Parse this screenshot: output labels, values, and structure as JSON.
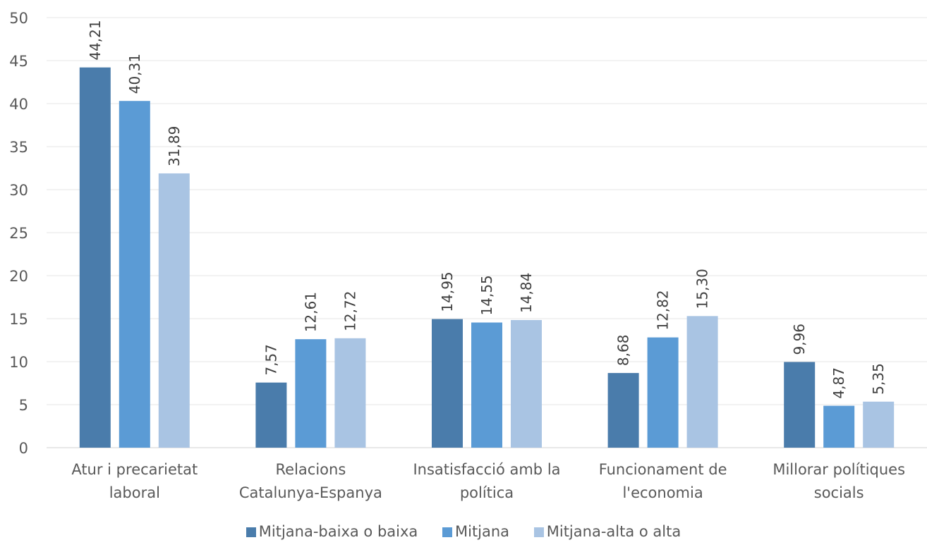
{
  "chart_data": {
    "type": "bar",
    "title": "",
    "xlabel": "",
    "ylabel": "",
    "ylim": [
      0,
      50
    ],
    "yticks": [
      0,
      5,
      10,
      15,
      20,
      25,
      30,
      35,
      40,
      45,
      50
    ],
    "grid": true,
    "legend_position": "bottom",
    "categories": [
      "Atur i precarietat laboral",
      "Relacions Catalunya-Espanya",
      "Insatisfacció amb la política",
      "Funcionament de l'economia",
      "Millorar polítiques socials"
    ],
    "category_lines": [
      [
        "Atur i precarietat",
        "laboral"
      ],
      [
        "Relacions",
        "Catalunya-Espanya"
      ],
      [
        "Insatisfacció amb la",
        "política"
      ],
      [
        "Funcionament de",
        "l'economia"
      ],
      [
        "Millorar polítiques",
        "socials"
      ]
    ],
    "series": [
      {
        "name": "Mitjana-baixa o baixa",
        "color": "#4a7cab",
        "values": [
          44.21,
          7.57,
          14.95,
          8.68,
          9.96
        ],
        "labels": [
          "44,21",
          "7,57",
          "14,95",
          "8,68",
          "9,96"
        ]
      },
      {
        "name": "Mitjana",
        "color": "#5b9bd5",
        "values": [
          40.31,
          12.61,
          14.55,
          12.82,
          4.87
        ],
        "labels": [
          "40,31",
          "12,61",
          "14,55",
          "12,82",
          "4,87"
        ]
      },
      {
        "name": "Mitjana-alta o alta",
        "color": "#a9c4e3",
        "values": [
          31.89,
          12.72,
          14.84,
          15.3,
          5.35
        ],
        "labels": [
          "31,89",
          "12,72",
          "14,84",
          "15,30",
          "5,35"
        ]
      }
    ]
  }
}
